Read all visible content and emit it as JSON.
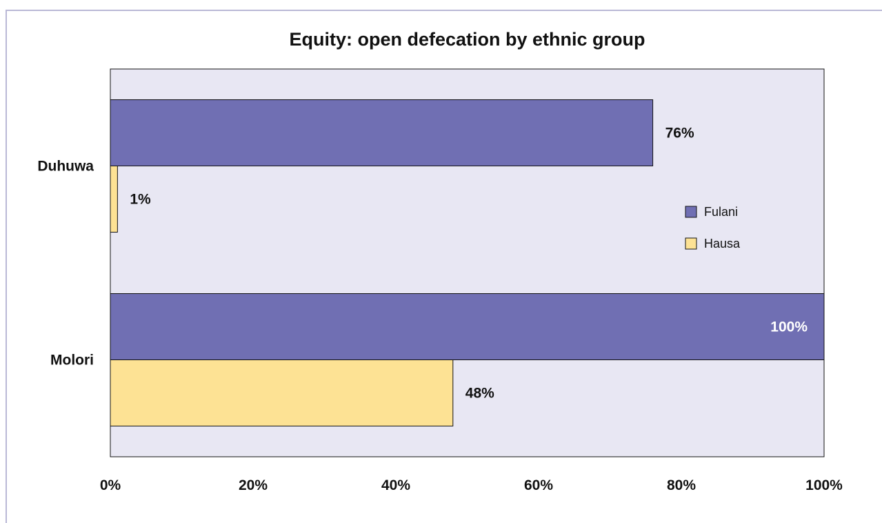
{
  "chart_data": {
    "type": "bar",
    "orientation": "horizontal",
    "title": "Equity: open defecation by ethnic group",
    "categories": [
      "Duhuwa",
      "Molori"
    ],
    "series": [
      {
        "name": "Fulani",
        "color": "#706fb3",
        "values": [
          76,
          100
        ],
        "labels": [
          "76%",
          "100%"
        ]
      },
      {
        "name": "Hausa",
        "color": "#fde294",
        "values": [
          1,
          48
        ],
        "labels": [
          "1%",
          "48%"
        ]
      }
    ],
    "xlim": [
      0,
      100
    ],
    "xticks": [
      0,
      20,
      40,
      60,
      80,
      100
    ],
    "xtick_labels": [
      "0%",
      "20%",
      "40%",
      "60%",
      "80%",
      "100%"
    ],
    "legend_position": "right",
    "plot_background": "#e8e7f3",
    "grid": false
  }
}
